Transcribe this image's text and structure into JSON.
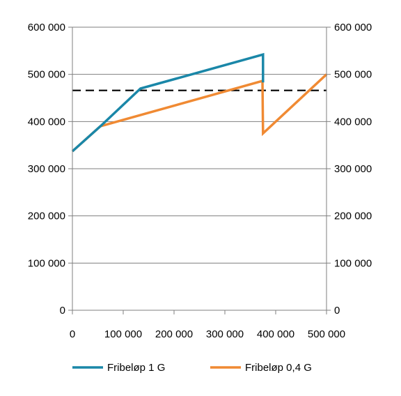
{
  "chart_data": {
    "type": "line",
    "title": "",
    "xlabel": "",
    "ylabel": "",
    "xlim": [
      0,
      500000
    ],
    "ylim": [
      0,
      600000
    ],
    "x_ticks": [
      0,
      100000,
      200000,
      300000,
      400000,
      500000
    ],
    "x_tick_labels": [
      "0",
      "100 000",
      "200 000",
      "300 000",
      "400 000",
      "500 000"
    ],
    "y_ticks": [
      0,
      100000,
      200000,
      300000,
      400000,
      500000,
      600000
    ],
    "y_tick_labels": [
      "0",
      "100 000",
      "200 000",
      "300 000",
      "400 000",
      "500 000",
      "600 000"
    ],
    "y2_tick_labels": [
      "0",
      "100 000",
      "200 000",
      "300 000",
      "400 000",
      "500 000",
      "600 000"
    ],
    "grid": "horizontal",
    "legend_position": "bottom",
    "reference_line": {
      "y": 466000,
      "style": "dashed",
      "color": "#000000"
    },
    "series": [
      {
        "name": "Fribeløp 1 G",
        "color": "#1a87a8",
        "x": [
          0,
          55000,
          134000,
          375000,
          375000
        ],
        "y": [
          337000,
          390000,
          470000,
          542000,
          483000
        ]
      },
      {
        "name": "Fribeløp 0,4 G",
        "color": "#f08a33",
        "x": [
          0,
          55000,
          374000,
          375000,
          500000
        ],
        "y": [
          337000,
          390000,
          486000,
          375000,
          500000
        ]
      }
    ]
  }
}
